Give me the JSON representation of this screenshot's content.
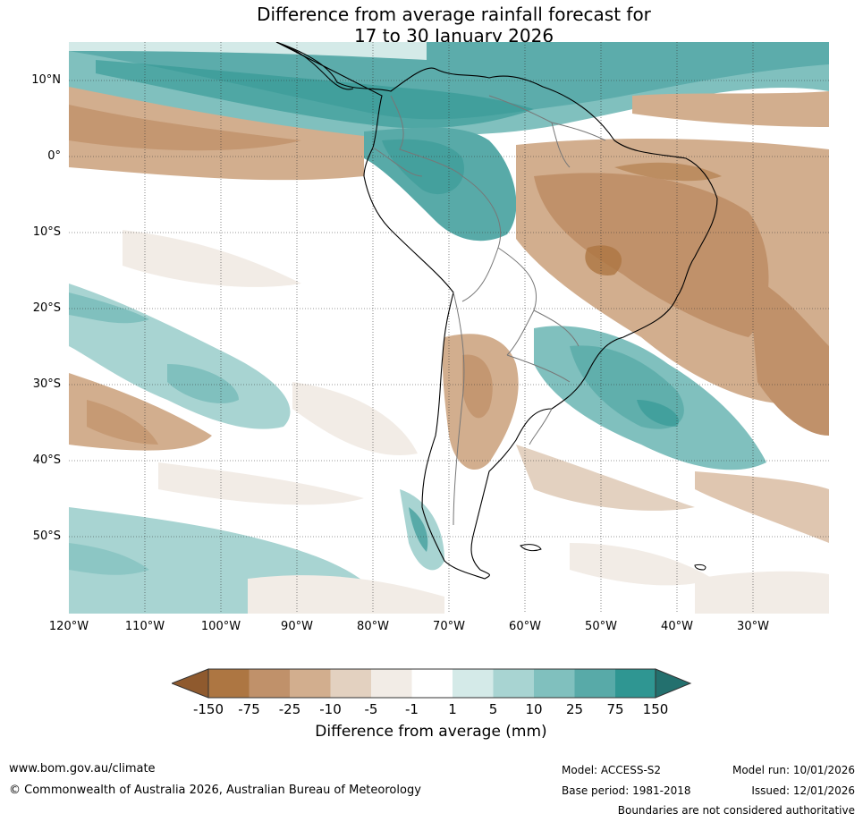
{
  "title": {
    "line1": "Difference from average rainfall forecast for",
    "line2": "17 to 30 January 2026"
  },
  "map": {
    "region": "South America",
    "lat_labels": [
      "10°N",
      "0°",
      "10°S",
      "20°S",
      "30°S",
      "40°S",
      "50°S"
    ],
    "lon_labels": [
      "120°W",
      "110°W",
      "100°W",
      "90°W",
      "80°W",
      "70°W",
      "60°W",
      "50°W",
      "40°W",
      "30°W"
    ]
  },
  "legend": {
    "ticks": [
      "-150",
      "-75",
      "-25",
      "-10",
      "-5",
      "-1",
      "1",
      "5",
      "10",
      "25",
      "75",
      "150"
    ],
    "colors": [
      "#8f5a2e",
      "#ad7642",
      "#c0916a",
      "#d2ae8e",
      "#e3d1c0",
      "#f2ece6",
      "#ffffff",
      "#d4eae8",
      "#a8d4d2",
      "#80c0be",
      "#58aaa8",
      "#2f9692",
      "#23706e"
    ],
    "label": "Difference from average (mm)"
  },
  "footer": {
    "website": "www.bom.gov.au/climate",
    "copyright": "© Commonwealth of Australia 2026, Australian Bureau of Meteorology",
    "model": "Model: ACCESS-S2",
    "base_period": "Base period: 1981-2018",
    "model_run": "Model run: 10/01/2026",
    "issued": "Issued: 12/01/2026",
    "disclaimer": "Boundaries are not considered authoritative"
  }
}
